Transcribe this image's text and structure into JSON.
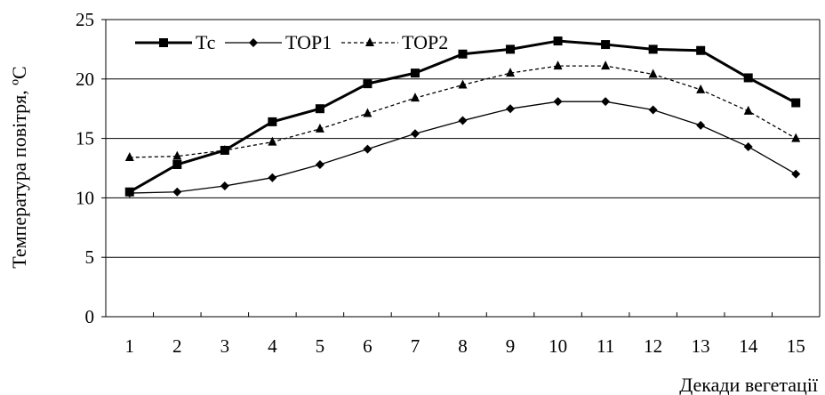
{
  "chart_data": {
    "type": "line",
    "title": "",
    "xlabel": "Декади вегетації",
    "ylabel": "Температура повітря, ºС",
    "categories": [
      "1",
      "2",
      "3",
      "4",
      "5",
      "6",
      "7",
      "8",
      "9",
      "10",
      "11",
      "12",
      "13",
      "14",
      "15"
    ],
    "ylim": [
      0,
      25
    ],
    "yticks": [
      "0",
      "5",
      "10",
      "15",
      "20",
      "25"
    ],
    "grid": "horizontal",
    "legend_position": "top-left",
    "series": [
      {
        "name": "Тс",
        "marker": "square",
        "line_style": "solid-thick",
        "values": [
          10.5,
          12.8,
          14.0,
          16.4,
          17.5,
          19.6,
          20.5,
          22.1,
          22.5,
          23.2,
          22.9,
          22.5,
          22.4,
          20.1,
          18.0
        ]
      },
      {
        "name": "ТОР1",
        "marker": "diamond",
        "line_style": "solid",
        "values": [
          10.4,
          10.5,
          11.0,
          11.7,
          12.8,
          14.1,
          15.4,
          16.5,
          17.5,
          18.1,
          18.1,
          17.4,
          16.1,
          14.3,
          12.0
        ]
      },
      {
        "name": "ТОР2",
        "marker": "triangle",
        "line_style": "dashed",
        "values": [
          13.4,
          13.5,
          14.0,
          14.7,
          15.8,
          17.1,
          18.4,
          19.5,
          20.5,
          21.1,
          21.1,
          20.4,
          19.1,
          17.3,
          15.0
        ]
      }
    ]
  }
}
